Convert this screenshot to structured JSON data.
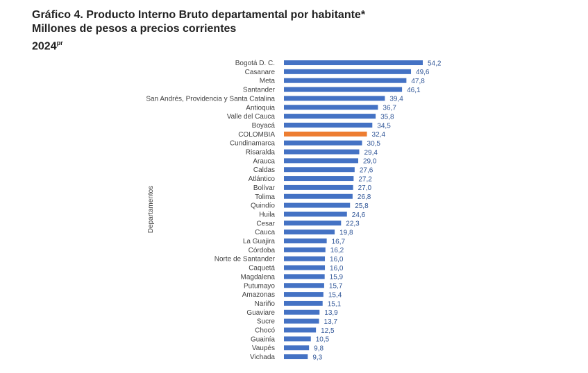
{
  "title_line1": "Gráfico 4. Producto Interno Bruto departamental por habitante*",
  "title_line2": "Millones de pesos a precios corrientes",
  "title_year": "2024",
  "title_sup": "pr",
  "chart_data": {
    "type": "bar",
    "orientation": "horizontal",
    "ylabel": "Departamentos",
    "xlim": [
      0,
      60
    ],
    "grid": false,
    "colors": {
      "default": "#4472c4",
      "highlight": "#ed7d31",
      "value_label": "#2f5597"
    },
    "highlight_category": "COLOMBIA",
    "categories": [
      "Bogotá D. C.",
      "Casanare",
      "Meta",
      "Santander",
      "San Andrés, Providencia y Santa Catalina",
      "Antioquia",
      "Valle del Cauca",
      "Boyacá",
      "COLOMBIA",
      "Cundinamarca",
      "Risaralda",
      "Arauca",
      "Caldas",
      "Atlántico",
      "Bolívar",
      "Tolima",
      "Quindío",
      "Huila",
      "Cesar",
      "Cauca",
      "La Guajira",
      "Córdoba",
      "Norte de Santander",
      "Caquetá",
      "Magdalena",
      "Putumayo",
      "Amazonas",
      "Nariño",
      "Guaviare",
      "Sucre",
      "Chocó",
      "Guainía",
      "Vaupés",
      "Vichada"
    ],
    "values": [
      54.2,
      49.6,
      47.8,
      46.1,
      39.4,
      36.7,
      35.8,
      34.5,
      32.4,
      30.5,
      29.4,
      29.0,
      27.6,
      27.2,
      27.0,
      26.8,
      25.8,
      24.6,
      22.3,
      19.8,
      16.7,
      16.2,
      16.0,
      16.0,
      15.9,
      15.7,
      15.4,
      15.1,
      13.9,
      13.7,
      12.5,
      10.5,
      9.8,
      9.3
    ],
    "value_labels": [
      "54,2",
      "49,6",
      "47,8",
      "46,1",
      "39,4",
      "36,7",
      "35,8",
      "34,5",
      "32,4",
      "30,5",
      "29,4",
      "29,0",
      "27,6",
      "27,2",
      "27,0",
      "26,8",
      "25,8",
      "24,6",
      "22,3",
      "19,8",
      "16,7",
      "16,2",
      "16,0",
      "16,0",
      "15,9",
      "15,7",
      "15,4",
      "15,1",
      "13,9",
      "13,7",
      "12,5",
      "10,5",
      "9,8",
      "9,3"
    ]
  }
}
